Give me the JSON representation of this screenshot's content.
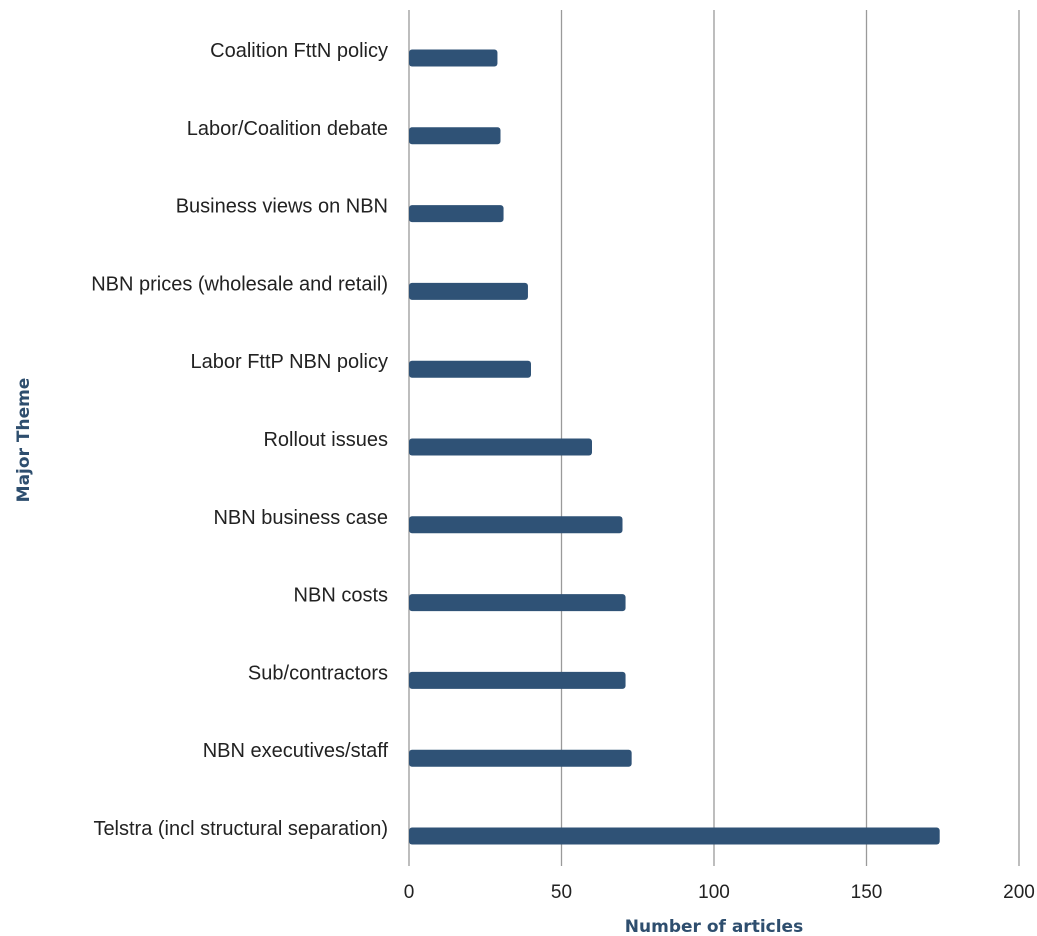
{
  "chart_data": {
    "type": "bar",
    "orientation": "horizontal",
    "xlabel": "Number of articles",
    "ylabel": "Major Theme",
    "xlim": [
      0,
      200
    ],
    "xticks": [
      "0",
      "50",
      "100",
      "150",
      "200"
    ],
    "grid": "vertical",
    "bar_color": "#2f5276",
    "categories": [
      "Coalition FttN policy",
      "Labor/Coalition debate",
      "Business views on NBN",
      "NBN prices (wholesale and retail)",
      "Labor FttP NBN policy",
      "Rollout issues",
      "NBN business case",
      "NBN costs",
      "Sub/contractors",
      "NBN executives/staff",
      "Telstra (incl structural separation)"
    ],
    "values": [
      29,
      30,
      31,
      39,
      40,
      60,
      70,
      71,
      71,
      73,
      174
    ]
  }
}
